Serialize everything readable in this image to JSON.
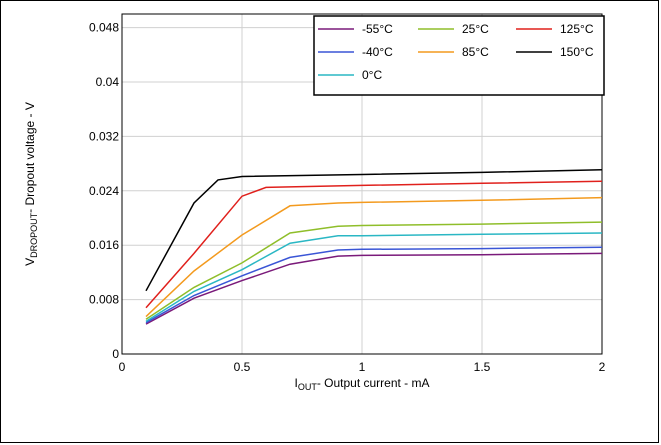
{
  "chart_data": {
    "type": "line",
    "xlabel": {
      "main": "I",
      "sub": "OUT",
      "rest": "- Output current - mA"
    },
    "ylabel": {
      "main": "V",
      "sub": "DROPOUT",
      "rest": "- Dropout voltage - V"
    },
    "xlim": [
      0,
      2
    ],
    "ylim": [
      0,
      0.05
    ],
    "x_ticks": [
      0,
      0.5,
      1,
      1.5,
      2
    ],
    "x_tick_labels": [
      "0",
      "0.5",
      "1",
      "1.5",
      "2"
    ],
    "y_ticks": [
      0,
      0.008,
      0.016,
      0.024,
      0.032,
      0.04,
      0.048
    ],
    "y_tick_labels": [
      "0",
      "0.008",
      "0.016",
      "0.024",
      "0.032",
      "0.04",
      "0.048"
    ],
    "grid": true,
    "legend_position": "top-right",
    "series": [
      {
        "name": "-55°C",
        "color": "#7a1a7a",
        "points": [
          [
            0.1,
            0.0044
          ],
          [
            0.3,
            0.0082
          ],
          [
            0.5,
            0.0108
          ],
          [
            0.7,
            0.0132
          ],
          [
            0.9,
            0.0144
          ],
          [
            1.0,
            0.0145
          ],
          [
            1.5,
            0.0146
          ],
          [
            2.0,
            0.0148
          ]
        ]
      },
      {
        "name": "-40°C",
        "color": "#3a55d6",
        "points": [
          [
            0.1,
            0.0046
          ],
          [
            0.3,
            0.0086
          ],
          [
            0.5,
            0.0115
          ],
          [
            0.7,
            0.0142
          ],
          [
            0.9,
            0.0153
          ],
          [
            1.0,
            0.0154
          ],
          [
            1.5,
            0.0155
          ],
          [
            2.0,
            0.0157
          ]
        ]
      },
      {
        "name": "0°C",
        "color": "#2ab7c4",
        "points": [
          [
            0.1,
            0.0048
          ],
          [
            0.3,
            0.0092
          ],
          [
            0.5,
            0.0124
          ],
          [
            0.7,
            0.0163
          ],
          [
            0.9,
            0.0174
          ],
          [
            1.0,
            0.0174
          ],
          [
            1.5,
            0.0176
          ],
          [
            2.0,
            0.0178
          ]
        ]
      },
      {
        "name": "25°C",
        "color": "#8fbe2a",
        "points": [
          [
            0.1,
            0.0051
          ],
          [
            0.3,
            0.0098
          ],
          [
            0.5,
            0.0134
          ],
          [
            0.7,
            0.0178
          ],
          [
            0.9,
            0.0188
          ],
          [
            1.0,
            0.0189
          ],
          [
            1.5,
            0.0191
          ],
          [
            2.0,
            0.0194
          ]
        ]
      },
      {
        "name": "85°C",
        "color": "#f39a1e",
        "points": [
          [
            0.1,
            0.0055
          ],
          [
            0.3,
            0.0122
          ],
          [
            0.5,
            0.0175
          ],
          [
            0.7,
            0.0218
          ],
          [
            0.9,
            0.0222
          ],
          [
            1.0,
            0.0223
          ],
          [
            1.5,
            0.0226
          ],
          [
            2.0,
            0.023
          ]
        ]
      },
      {
        "name": "125°C",
        "color": "#e0201c",
        "points": [
          [
            0.1,
            0.0068
          ],
          [
            0.3,
            0.0148
          ],
          [
            0.5,
            0.0232
          ],
          [
            0.6,
            0.0245
          ],
          [
            1.0,
            0.0248
          ],
          [
            1.5,
            0.0251
          ],
          [
            2.0,
            0.0254
          ]
        ]
      },
      {
        "name": "150°C",
        "color": "#000000",
        "points": [
          [
            0.1,
            0.0093
          ],
          [
            0.3,
            0.0222
          ],
          [
            0.4,
            0.0256
          ],
          [
            0.5,
            0.0261
          ],
          [
            1.0,
            0.0264
          ],
          [
            1.5,
            0.0267
          ],
          [
            2.0,
            0.0271
          ]
        ]
      }
    ]
  }
}
